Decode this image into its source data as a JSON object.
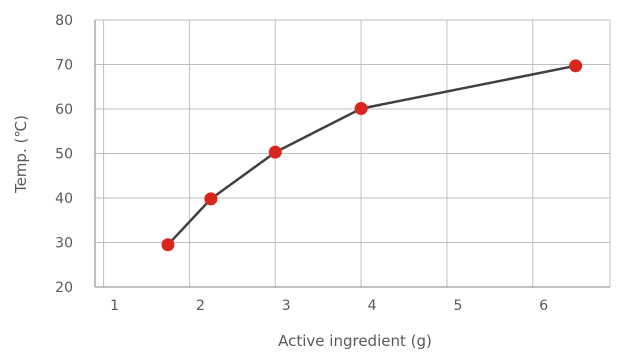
{
  "chart_data": {
    "type": "line",
    "title": "",
    "xlabel": "Active ingredient (g)",
    "ylabel": "Temp. (℃)",
    "xlim": [
      0.9,
      6.9
    ],
    "ylim": [
      20,
      80
    ],
    "xticks": [
      1,
      2,
      3,
      4,
      5,
      6
    ],
    "yticks": [
      20,
      30,
      40,
      50,
      60,
      70,
      80
    ],
    "grid": true,
    "legend": "none",
    "series": [
      {
        "x": [
          1.75,
          2.25,
          3.0,
          4.0,
          6.5
        ],
        "y": [
          29.5,
          39.8,
          50.3,
          60.1,
          69.7
        ]
      }
    ],
    "colors": {
      "line": "#404040",
      "marker": "#d9261c",
      "grid": "#bfbfbf",
      "axis": "#808080",
      "text": "#595959"
    }
  }
}
